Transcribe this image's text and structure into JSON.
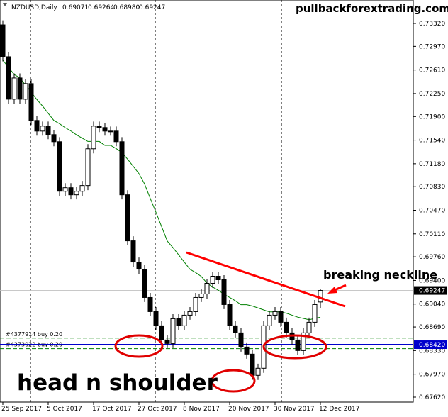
{
  "chart_data": {
    "type": "candlestick",
    "header": {
      "symbol": "NZDUSD,Daily",
      "quote": [
        "0.69071",
        "0.69264",
        "0.68980",
        "0.69247"
      ]
    },
    "watermark": "pullbackforextrading.com",
    "annotations": {
      "neckline": "breaking neckline",
      "pattern": "head n shoulder"
    },
    "categories": [
      "25 Sep 2017",
      null,
      null,
      null,
      null,
      null,
      null,
      null,
      "5 Oct 2017",
      null,
      null,
      null,
      null,
      null,
      null,
      null,
      "17 Oct 2017",
      null,
      null,
      null,
      null,
      null,
      null,
      null,
      "27 Oct 2017",
      null,
      null,
      null,
      null,
      null,
      null,
      null,
      "8 Nov 2017",
      null,
      null,
      null,
      null,
      null,
      null,
      null,
      "20 Nov 2017",
      null,
      null,
      null,
      null,
      null,
      null,
      null,
      "30 Nov 2017",
      null,
      null,
      null,
      null,
      null,
      null,
      null,
      "12 Dec 2017"
    ],
    "open": [
      0.73298,
      0.72812,
      0.72164,
      0.72488,
      0.72164,
      0.72402,
      0.7184,
      0.71678,
      0.71754,
      0.71624,
      0.71516,
      0.7076,
      0.70814,
      0.70706,
      0.7076,
      0.70847,
      0.71408,
      0.71754,
      0.71732,
      0.71678,
      0.71678,
      0.71516,
      0.70706,
      0.70004,
      0.6968,
      0.69572,
      0.6914,
      0.68924,
      0.68708,
      0.68492,
      0.68438,
      0.68816,
      0.68708,
      0.6887,
      0.68924,
      0.6914,
      0.69194,
      0.69356,
      0.69464,
      0.6941,
      0.69032,
      0.68708,
      0.686,
      0.68384,
      0.68276,
      0.67952,
      0.6806,
      0.68708,
      0.6887,
      0.68924,
      0.68762,
      0.686,
      0.68492,
      0.6833,
      0.686,
      0.68762,
      0.69071
    ],
    "high": [
      0.73368,
      0.72882,
      0.72558,
      0.72558,
      0.72472,
      0.72472,
      0.7191,
      0.71824,
      0.71824,
      0.71694,
      0.71586,
      0.70884,
      0.70884,
      0.7083,
      0.70917,
      0.71478,
      0.71824,
      0.71824,
      0.71802,
      0.71748,
      0.71748,
      0.71586,
      0.70776,
      0.70074,
      0.6975,
      0.69642,
      0.6921,
      0.68994,
      0.68778,
      0.68562,
      0.68886,
      0.68886,
      0.6894,
      0.68994,
      0.6921,
      0.69264,
      0.69426,
      0.69534,
      0.69534,
      0.6948,
      0.69102,
      0.68778,
      0.6867,
      0.68454,
      0.68346,
      0.6813,
      0.68778,
      0.6894,
      0.68994,
      0.68994,
      0.68832,
      0.6867,
      0.68562,
      0.6867,
      0.68832,
      0.69102,
      0.69264
    ],
    "low": [
      0.72742,
      0.72094,
      0.72094,
      0.72094,
      0.72094,
      0.7177,
      0.71608,
      0.71608,
      0.71554,
      0.71446,
      0.7069,
      0.7069,
      0.70636,
      0.70636,
      0.7069,
      0.70777,
      0.71338,
      0.71662,
      0.71608,
      0.71608,
      0.71446,
      0.70636,
      0.69934,
      0.6961,
      0.69502,
      0.6907,
      0.68854,
      0.68638,
      0.68422,
      0.68368,
      0.68368,
      0.68638,
      0.68638,
      0.688,
      0.68854,
      0.6907,
      0.69124,
      0.69286,
      0.6934,
      0.68962,
      0.68638,
      0.6853,
      0.68314,
      0.68206,
      0.67882,
      0.67882,
      0.6799,
      0.68638,
      0.688,
      0.68692,
      0.6853,
      0.68422,
      0.6826,
      0.6826,
      0.6853,
      0.68692,
      0.6898
    ],
    "close": [
      0.72812,
      0.72164,
      0.72488,
      0.72164,
      0.72402,
      0.7184,
      0.71678,
      0.71754,
      0.71624,
      0.71516,
      0.7076,
      0.70814,
      0.70706,
      0.7076,
      0.70847,
      0.71408,
      0.71754,
      0.71732,
      0.71678,
      0.71678,
      0.71516,
      0.70706,
      0.70004,
      0.6968,
      0.69572,
      0.6914,
      0.68924,
      0.68708,
      0.68492,
      0.68438,
      0.68816,
      0.68708,
      0.6887,
      0.68924,
      0.6914,
      0.69194,
      0.69356,
      0.69464,
      0.6941,
      0.69032,
      0.68708,
      0.686,
      0.68384,
      0.68276,
      0.67952,
      0.6806,
      0.68708,
      0.6887,
      0.68924,
      0.68762,
      0.686,
      0.68492,
      0.6833,
      0.686,
      0.68762,
      0.69032,
      0.69247
    ],
    "up_color": "#ffffff",
    "down_color": "#000000",
    "ma": {
      "color": "#008000",
      "values": [
        0.7276,
        0.7265,
        0.7254,
        0.7249,
        0.7238,
        0.7227,
        0.7216,
        0.7206,
        0.7195,
        0.7184,
        0.7179,
        0.7173,
        0.7168,
        0.7162,
        0.7157,
        0.7152,
        0.7152,
        0.7152,
        0.7146,
        0.7146,
        0.7141,
        0.7135,
        0.7125,
        0.7114,
        0.7103,
        0.7087,
        0.7065,
        0.7044,
        0.7022,
        0.7,
        0.699,
        0.6979,
        0.6968,
        0.6957,
        0.6952,
        0.6946,
        0.6936,
        0.693,
        0.6925,
        0.6919,
        0.6914,
        0.6909,
        0.6903,
        0.6903,
        0.6901,
        0.6898,
        0.6895,
        0.6892,
        0.6892,
        0.6892,
        0.689,
        0.6887,
        0.6884,
        0.6882,
        0.688,
        0.6882,
        0.6884
      ]
    },
    "current_price": 0.69247,
    "level": {
      "value": 0.6842,
      "label": "0.68420",
      "color": "#0000cc"
    },
    "orders": [
      {
        "label": "#4377914 buy 0.20",
        "value": 0.6852
      },
      {
        "label": "#4373022 buy 0.20",
        "value": 0.6836
      }
    ],
    "ylim": [
      0.67555,
      0.73677
    ],
    "yticks": [
      {
        "value": 0.7332,
        "label": "0.73320"
      },
      {
        "value": 0.7297,
        "label": "0.72970"
      },
      {
        "value": 0.7261,
        "label": "0.72610"
      },
      {
        "value": 0.7225,
        "label": "0.72250"
      },
      {
        "value": 0.719,
        "label": "0.71900"
      },
      {
        "value": 0.7154,
        "label": "0.71540"
      },
      {
        "value": 0.7118,
        "label": "0.71180"
      },
      {
        "value": 0.7083,
        "label": "0.70830"
      },
      {
        "value": 0.7047,
        "label": "0.70470"
      },
      {
        "value": 0.7011,
        "label": "0.70110"
      },
      {
        "value": 0.6976,
        "label": "0.69760"
      },
      {
        "value": 0.694,
        "label": "0.69400"
      },
      {
        "value": 0.6904,
        "label": "0.69040"
      },
      {
        "value": 0.6869,
        "label": "0.68690"
      },
      {
        "value": 0.6833,
        "label": "0.68330"
      },
      {
        "value": 0.6797,
        "label": "0.67970"
      },
      {
        "value": 0.6762,
        "label": "0.67620"
      }
    ]
  }
}
